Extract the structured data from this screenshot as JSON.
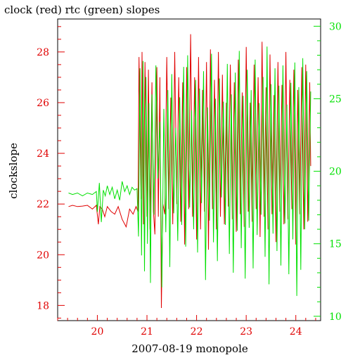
{
  "chart_data": {
    "type": "line",
    "title": "clock (red) rtc (green) slopes",
    "xlabel": "2007-08-19 monopole",
    "ylabel": "clockslope",
    "y2label": "",
    "xlim": [
      19.2,
      24.5
    ],
    "ylim": [
      17.4,
      29.3
    ],
    "y2lim": [
      9.7,
      30.5
    ],
    "x_ticks": [
      20,
      21,
      22,
      23,
      24
    ],
    "y_ticks": [
      18,
      20,
      22,
      24,
      26,
      28
    ],
    "y2_ticks": [
      10,
      15,
      20,
      25,
      30
    ],
    "x_tick_labels": [
      "20",
      "21",
      "22",
      "23",
      "24"
    ],
    "y_tick_labels": [
      "18",
      "20",
      "22",
      "24",
      "26",
      "28"
    ],
    "y2_tick_labels": [
      "10",
      "15",
      "20",
      "25",
      "30"
    ],
    "grid": false,
    "colors": {
      "clock": "#e00000",
      "rtc": "#00e000",
      "axis": "#000000"
    },
    "series": [
      {
        "axis": "left",
        "color": "#e00000",
        "x": [
          19.42,
          19.5,
          19.6,
          19.7,
          19.8,
          19.9,
          19.98,
          20.02,
          20.05,
          20.1,
          20.15,
          20.2,
          20.28,
          20.35,
          20.42,
          20.5,
          20.58,
          20.65,
          20.72,
          20.78,
          20.82,
          20.84,
          20.88,
          20.9,
          20.93,
          20.96,
          21.0,
          21.03,
          21.06,
          21.1,
          21.13,
          21.16,
          21.2,
          21.23,
          21.26,
          21.29,
          21.32,
          21.36,
          21.4,
          21.44,
          21.48,
          21.52,
          21.56,
          21.6,
          21.64,
          21.68,
          21.72,
          21.76,
          21.8,
          21.84,
          21.88,
          21.92,
          21.96,
          22.0,
          22.04,
          22.08,
          22.12,
          22.16,
          22.2,
          22.24,
          22.28,
          22.32,
          22.36,
          22.4,
          22.44,
          22.48,
          22.52,
          22.56,
          22.6,
          22.64,
          22.68,
          22.72,
          22.76,
          22.8,
          22.84,
          22.88,
          22.92,
          22.96,
          23.0,
          23.04,
          23.08,
          23.12,
          23.16,
          23.2,
          23.24,
          23.28,
          23.32,
          23.36,
          23.4,
          23.44,
          23.48,
          23.52,
          23.56,
          23.6,
          23.64,
          23.68,
          23.72,
          23.76,
          23.8,
          23.84,
          23.88,
          23.92,
          23.96,
          24.0,
          24.04,
          24.08,
          24.12,
          24.16,
          24.2,
          24.24,
          24.28,
          24.3
        ],
        "y": [
          21.9,
          21.95,
          21.9,
          21.92,
          21.95,
          21.8,
          21.95,
          21.2,
          21.9,
          21.8,
          21.5,
          21.9,
          21.7,
          21.6,
          21.9,
          21.4,
          21.1,
          21.8,
          21.6,
          21.9,
          21.7,
          27.8,
          22.2,
          28.0,
          21.2,
          27.6,
          21.5,
          27.3,
          21.0,
          26.8,
          21.7,
          20.8,
          27.4,
          21.5,
          27.0,
          17.9,
          22.0,
          21.6,
          27.8,
          21.8,
          26.2,
          21.2,
          28.0,
          22.0,
          27.0,
          21.3,
          26.8,
          20.4,
          27.4,
          21.8,
          28.7,
          21.5,
          27.0,
          20.6,
          27.8,
          21.0,
          26.5,
          21.7,
          27.6,
          20.2,
          28.1,
          21.8,
          26.9,
          21.0,
          28.0,
          21.5,
          27.1,
          21.2,
          26.0,
          21.9,
          27.5,
          21.4,
          26.8,
          20.9,
          27.7,
          21.6,
          26.4,
          21.1,
          28.2,
          21.7,
          26.0,
          21.3,
          27.5,
          21.8,
          27.0,
          20.7,
          28.4,
          21.5,
          26.6,
          21.0,
          27.9,
          21.6,
          26.3,
          20.5,
          27.6,
          21.7,
          26.7,
          21.2,
          28.0,
          21.4,
          26.9,
          21.8,
          27.3,
          20.4,
          26.5,
          21.6,
          27.4,
          21.0,
          27.5,
          21.3,
          26.8,
          23.5
        ]
      },
      {
        "axis": "right",
        "color": "#00e000",
        "x": [
          19.42,
          19.5,
          19.6,
          19.7,
          19.8,
          19.9,
          19.98,
          20.0,
          20.04,
          20.08,
          20.12,
          20.16,
          20.2,
          20.25,
          20.3,
          20.35,
          20.4,
          20.45,
          20.5,
          20.55,
          20.6,
          20.65,
          20.7,
          20.75,
          20.8,
          20.83,
          20.86,
          20.89,
          20.92,
          20.95,
          20.98,
          21.01,
          21.04,
          21.07,
          21.1,
          21.14,
          21.18,
          21.22,
          21.26,
          21.3,
          21.34,
          21.38,
          21.42,
          21.46,
          21.5,
          21.54,
          21.58,
          21.62,
          21.66,
          21.7,
          21.74,
          21.78,
          21.82,
          21.86,
          21.9,
          21.94,
          21.98,
          22.02,
          22.06,
          22.1,
          22.14,
          22.18,
          22.22,
          22.26,
          22.3,
          22.34,
          22.38,
          22.42,
          22.46,
          22.5,
          22.54,
          22.58,
          22.62,
          22.66,
          22.7,
          22.74,
          22.78,
          22.82,
          22.86,
          22.9,
          22.94,
          22.98,
          23.02,
          23.06,
          23.1,
          23.14,
          23.18,
          23.22,
          23.26,
          23.3,
          23.34,
          23.38,
          23.42,
          23.46,
          23.5,
          23.54,
          23.58,
          23.62,
          23.66,
          23.7,
          23.74,
          23.78,
          23.82,
          23.86,
          23.9,
          23.94,
          23.98,
          24.02,
          24.06,
          24.1,
          24.14,
          24.18,
          24.22,
          24.26,
          24.3
        ],
        "y": [
          18.5,
          18.4,
          18.5,
          18.3,
          18.5,
          18.4,
          18.6,
          17.2,
          19.2,
          16.5,
          18.7,
          18.3,
          19.0,
          18.4,
          18.9,
          18.1,
          18.7,
          18.0,
          19.3,
          18.6,
          19.0,
          18.4,
          18.9,
          18.7,
          18.8,
          15.5,
          27.1,
          14.2,
          27.6,
          13.1,
          26.5,
          15.0,
          24.7,
          12.3,
          25.3,
          17.0,
          27.3,
          19.5,
          23.4,
          12.0,
          24.3,
          15.8,
          25.6,
          13.4,
          26.7,
          17.1,
          23.0,
          15.2,
          25.1,
          16.3,
          27.2,
          14.8,
          28.0,
          17.5,
          24.2,
          16.0,
          26.3,
          14.4,
          25.7,
          17.8,
          26.9,
          12.5,
          24.4,
          16.6,
          28.1,
          15.1,
          25.0,
          13.8,
          26.4,
          18.2,
          24.8,
          16.3,
          27.4,
          14.3,
          25.3,
          13.0,
          26.8,
          15.9,
          28.3,
          14.7,
          25.2,
          12.6,
          27.0,
          16.1,
          25.6,
          13.3,
          27.7,
          15.6,
          24.7,
          17.0,
          26.5,
          14.1,
          28.6,
          12.2,
          26.0,
          15.7,
          27.1,
          14.5,
          25.9,
          13.5,
          27.3,
          16.4,
          24.6,
          12.9,
          26.1,
          15.3,
          27.5,
          11.4,
          25.8,
          13.2,
          27.8,
          16.0,
          26.9,
          16.6,
          25.5
        ]
      }
    ]
  }
}
